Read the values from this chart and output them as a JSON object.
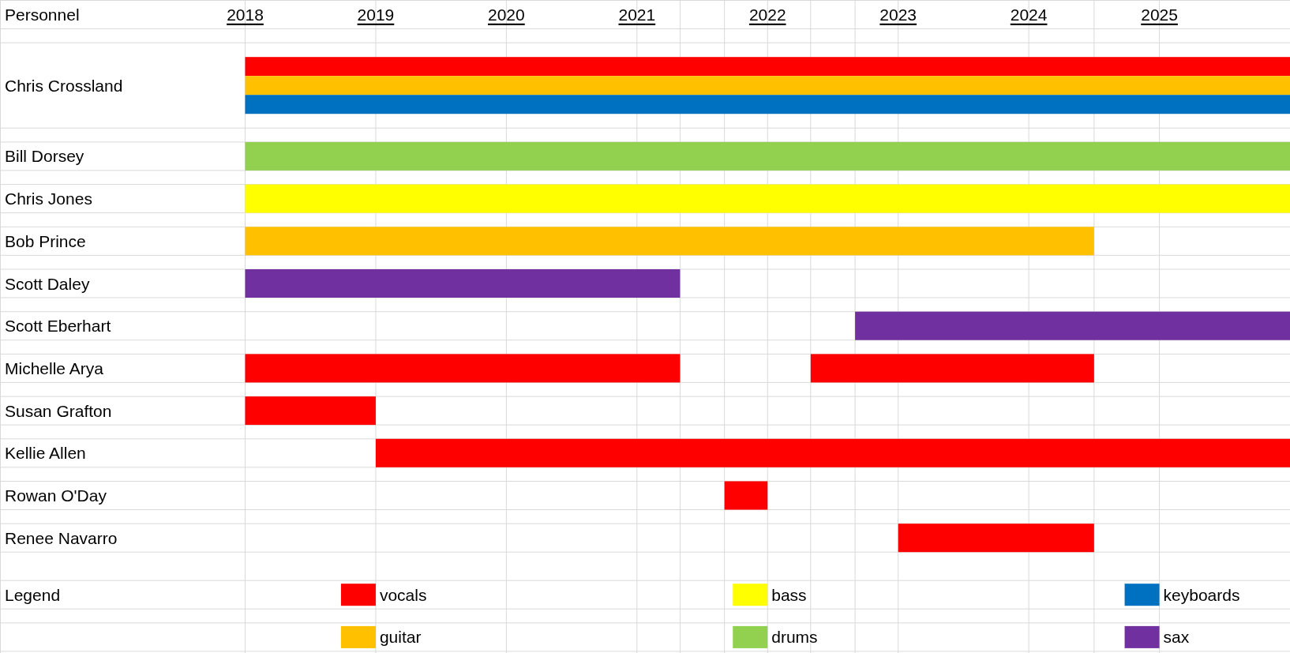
{
  "chart_data": {
    "type": "bar",
    "orientation": "horizontal",
    "title": "Personnel",
    "legend_title": "Legend",
    "legend": "bottom",
    "grid": true,
    "categories": [
      "Chris Crossland",
      "Bill Dorsey",
      "Chris Jones",
      "Bob Prince",
      "Scott Daley",
      "Scott Eberhart",
      "Michelle Arya",
      "Susan Grafton",
      "Kellie Allen",
      "Rowan O'Day",
      "Renee Navarro"
    ],
    "xlim": [
      2018,
      2026
    ],
    "xticks": [
      2018,
      2019,
      2020,
      2021,
      {
        "value": 2021.33,
        "label": null
      },
      {
        "value": 2021.67,
        "label": null
      },
      2022,
      {
        "value": 2022.33,
        "label": null
      },
      {
        "value": 2022.67,
        "label": null
      },
      2023,
      2024,
      {
        "value": 2024.5,
        "label": null
      },
      2025
    ],
    "series": [
      {
        "name": "vocals",
        "color": "#ff0000",
        "values": [
          8,
          null,
          null,
          null,
          null,
          null,
          3.33,
          1,
          7,
          0.33,
          1.5
        ],
        "base": [
          2018,
          null,
          null,
          null,
          null,
          null,
          2018,
          2018,
          2019,
          2021.67,
          2023
        ]
      },
      {
        "name": "guitar",
        "color": "#ffc000",
        "values": [
          8,
          null,
          null,
          6.5,
          null,
          null,
          null,
          null,
          null,
          null,
          null
        ],
        "base": [
          2018,
          null,
          null,
          2018,
          null,
          null,
          null,
          null,
          null,
          null,
          null
        ]
      },
      {
        "name": "bass",
        "color": "#ffff00",
        "values": [
          null,
          null,
          8,
          null,
          null,
          null,
          null,
          null,
          null,
          null,
          null
        ],
        "base": [
          null,
          null,
          2018,
          null,
          null,
          null,
          null,
          null,
          null,
          null,
          null
        ]
      },
      {
        "name": "drums",
        "color": "#92d050",
        "values": [
          null,
          8,
          null,
          null,
          null,
          null,
          null,
          null,
          null,
          null,
          null
        ],
        "base": [
          null,
          2018,
          null,
          null,
          null,
          null,
          null,
          null,
          null,
          null,
          null
        ]
      },
      {
        "name": "keyboards",
        "color": "#0070c0",
        "values": [
          8,
          null,
          null,
          null,
          null,
          null,
          null,
          null,
          null,
          null,
          null
        ],
        "base": [
          2018,
          null,
          null,
          null,
          null,
          null,
          null,
          null,
          null,
          null,
          null
        ]
      },
      {
        "name": "sax",
        "color": "#7030a0",
        "values": [
          null,
          null,
          null,
          null,
          3.33,
          3.33,
          null,
          null,
          null,
          null,
          null
        ],
        "base": [
          null,
          null,
          null,
          null,
          2018,
          2022.67,
          null,
          null,
          null,
          null,
          null
        ]
      },
      {
        "color": "#ff0000",
        "values": [
          null,
          null,
          null,
          null,
          null,
          null,
          2.17,
          null,
          null,
          null,
          null
        ],
        "base": [
          null,
          null,
          null,
          null,
          null,
          null,
          2022.33,
          null,
          null,
          null,
          null
        ]
      }
    ]
  }
}
